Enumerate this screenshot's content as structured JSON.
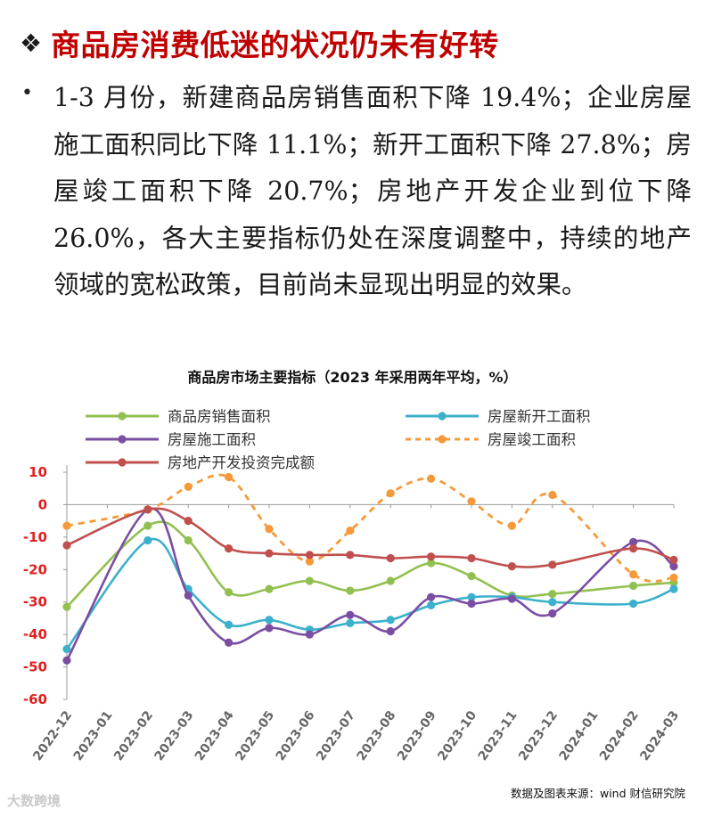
{
  "heading": {
    "bullet_glyph": "❖",
    "title": "商品房消费低迷的状况仍未有好转"
  },
  "body": {
    "bullet_glyph": "•",
    "paragraph": "1-3 月份，新建商品房销售面积下降 19.4%；企业房屋施工面积同比下降 11.1%；新开工面积下降 27.8%；房屋竣工面积下降 20.7%；房地产开发企业到位下降 26.0%，各大主要指标仍处在深度调整中，持续的地产领域的宽松政策，目前尚未显现出明显的效果。"
  },
  "source_note": "数据及图表来源：wind 财信研究院",
  "watermark": "大数跨境",
  "chart_data": {
    "type": "line",
    "title": "商品房市场主要指标（2023 年采用两年平均，%）",
    "categories": [
      "2022-12",
      "2023-01",
      "2023-02",
      "2023-03",
      "2023-04",
      "2023-05",
      "2023-06",
      "2023-07",
      "2023-08",
      "2023-09",
      "2023-10",
      "2023-11",
      "2023-12",
      "2024-01",
      "2024-02",
      "2024-03"
    ],
    "ylim": [
      -60,
      10
    ],
    "yticks": [
      10,
      0,
      -10,
      -20,
      -30,
      -40,
      -50,
      -60
    ],
    "grid": false,
    "legend_position": "top",
    "tick_color": "#e02020",
    "series": [
      {
        "name": "商品房销售面积",
        "color": "#92c050",
        "dashed": false,
        "values": [
          -31.5,
          null,
          -6.5,
          -11,
          -27,
          -26,
          -23.5,
          -26.5,
          -23.5,
          -18,
          -22,
          -28,
          -27.5,
          null,
          -25,
          -24
        ]
      },
      {
        "name": "房屋新开工面积",
        "color": "#3cb0cc",
        "dashed": false,
        "values": [
          -44.5,
          null,
          -11,
          -26,
          -37,
          -35.5,
          -38.5,
          -36.5,
          -35.5,
          -31,
          -28.5,
          -28.5,
          -30,
          null,
          -30.5,
          -26
        ]
      },
      {
        "name": "房屋施工面积",
        "color": "#7a4ea2",
        "dashed": false,
        "values": [
          -48,
          null,
          -1.5,
          -28,
          -42.5,
          -38,
          -40,
          -34,
          -39,
          -28.5,
          -30.5,
          -29,
          -33.5,
          null,
          -11.5,
          -19
        ]
      },
      {
        "name": "房屋竣工面积",
        "color": "#f59a3a",
        "dashed": true,
        "values": [
          -6.5,
          null,
          -1.5,
          5.5,
          8.5,
          -7.5,
          -17.5,
          -8,
          3.5,
          8,
          1,
          -6.5,
          3,
          null,
          -21.5,
          -22.5
        ]
      },
      {
        "name": "房地产开发投资完成额",
        "color": "#c0504d",
        "dashed": false,
        "values": [
          -12.5,
          null,
          -1.5,
          -5,
          -13.5,
          -15,
          -15.5,
          -15.5,
          -16.5,
          -16,
          -16.5,
          -19,
          -18.5,
          null,
          -13.5,
          -17
        ]
      }
    ]
  }
}
